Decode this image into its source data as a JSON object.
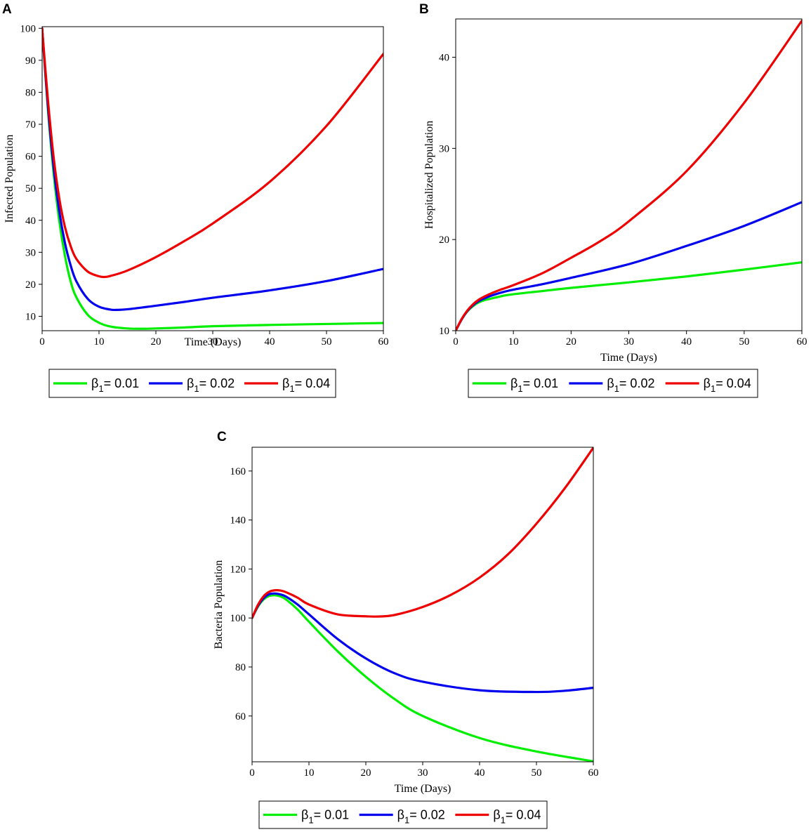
{
  "chart_data": [
    {
      "panel": "A",
      "type": "line",
      "xlabel": "Time (Days)",
      "ylabel": "Infected Population",
      "xlim": [
        0,
        60
      ],
      "ylim": [
        5.5,
        100.5
      ],
      "xticks": [
        0,
        10,
        20,
        30,
        40,
        50,
        60
      ],
      "yticks": [
        10,
        20,
        30,
        40,
        50,
        60,
        70,
        80,
        90,
        100
      ],
      "legend": {
        "position": "bottom-center",
        "entries": [
          "β1 = 0.01",
          "β1 = 0.02",
          "β1 = 0.04"
        ]
      },
      "series": [
        {
          "name": "β1 = 0.01",
          "symbol": "β",
          "sub": "1",
          "value_text": "= 0.01",
          "color": "#00ee00",
          "x": [
            0,
            1,
            2,
            3,
            4,
            5,
            6,
            8,
            10,
            12,
            15,
            18,
            20,
            25,
            30,
            40,
            50,
            60
          ],
          "y": [
            100,
            75,
            55,
            40,
            29,
            21,
            16,
            10.5,
            8,
            6.8,
            6.2,
            6.1,
            6.2,
            6.5,
            6.9,
            7.3,
            7.6,
            7.9
          ]
        },
        {
          "name": "β1 = 0.02",
          "symbol": "β",
          "sub": "1",
          "value_text": "= 0.02",
          "color": "#0000ee",
          "x": [
            0,
            1,
            2,
            3,
            4,
            5,
            6,
            8,
            10,
            12,
            13,
            15,
            20,
            25,
            30,
            40,
            50,
            60
          ],
          "y": [
            100,
            76,
            57,
            43,
            33,
            26,
            21,
            15.5,
            13,
            12.1,
            12,
            12.2,
            13.3,
            14.5,
            15.8,
            18.1,
            21,
            24.8
          ]
        },
        {
          "name": "β1 = 0.04",
          "symbol": "β",
          "sub": "1",
          "value_text": "= 0.04",
          "color": "#ee0000",
          "x": [
            0,
            1,
            2,
            3,
            4,
            5,
            6,
            8,
            10,
            11,
            12,
            15,
            20,
            25,
            30,
            40,
            50,
            60
          ],
          "y": [
            100,
            78,
            60,
            47,
            38,
            32,
            28,
            24,
            22.5,
            22.3,
            22.6,
            24.3,
            28.5,
            33.5,
            39,
            52,
            69.5,
            92
          ]
        }
      ]
    },
    {
      "panel": "B",
      "type": "line",
      "xlabel": "Time (Days)",
      "ylabel": "Hospitalized Population",
      "xlim": [
        0,
        60
      ],
      "ylim": [
        10,
        44.2
      ],
      "xticks": [
        0,
        10,
        20,
        30,
        40,
        50,
        60
      ],
      "yticks": [
        10,
        20,
        30,
        40
      ],
      "legend": {
        "position": "bottom-center",
        "entries": [
          "β1 = 0.01",
          "β1 = 0.02",
          "β1 = 0.04"
        ]
      },
      "series": [
        {
          "name": "β1 = 0.01",
          "symbol": "β",
          "sub": "1",
          "value_text": "= 0.01",
          "color": "#00ee00",
          "x": [
            0,
            1,
            2,
            3,
            4,
            5,
            6,
            8,
            10,
            15,
            20,
            30,
            40,
            50,
            60
          ],
          "y": [
            10,
            11.2,
            12.1,
            12.7,
            13.1,
            13.35,
            13.5,
            13.8,
            14,
            14.35,
            14.7,
            15.3,
            15.95,
            16.7,
            17.5
          ]
        },
        {
          "name": "β1 = 0.02",
          "symbol": "β",
          "sub": "1",
          "value_text": "= 0.02",
          "color": "#0000ee",
          "x": [
            0,
            1,
            2,
            3,
            4,
            5,
            6,
            8,
            10,
            15,
            20,
            30,
            40,
            50,
            60
          ],
          "y": [
            10,
            11.2,
            12.15,
            12.8,
            13.25,
            13.55,
            13.8,
            14.2,
            14.5,
            15.1,
            15.8,
            17.3,
            19.3,
            21.5,
            24.1
          ]
        },
        {
          "name": "β1 = 0.04",
          "symbol": "β",
          "sub": "1",
          "value_text": "= 0.04",
          "color": "#ee0000",
          "x": [
            0,
            1,
            2,
            3,
            4,
            5,
            6,
            8,
            10,
            15,
            20,
            25,
            30,
            40,
            50,
            60
          ],
          "y": [
            10,
            11.25,
            12.2,
            12.9,
            13.4,
            13.75,
            14.05,
            14.55,
            15,
            16.3,
            18,
            19.8,
            22,
            27.5,
            35,
            44
          ]
        }
      ]
    },
    {
      "panel": "C",
      "type": "line",
      "xlabel": "Time (Days)",
      "ylabel": "Bacteria Population",
      "xlim": [
        0,
        60
      ],
      "ylim": [
        41.3,
        169.7
      ],
      "xticks": [
        0,
        10,
        20,
        30,
        40,
        50,
        60
      ],
      "yticks": [
        60,
        80,
        100,
        120,
        140,
        160
      ],
      "legend": {
        "position": "bottom-center",
        "entries": [
          "β1 = 0.01",
          "β1 = 0.02",
          "β1 = 0.04"
        ]
      },
      "series": [
        {
          "name": "β1 = 0.01",
          "symbol": "β",
          "sub": "1",
          "value_text": "= 0.01",
          "color": "#00ee00",
          "x": [
            0,
            1,
            2,
            3,
            4,
            5,
            6,
            8,
            10,
            15,
            20,
            25,
            30,
            40,
            50,
            60
          ],
          "y": [
            100,
            104.5,
            107.5,
            109,
            109.3,
            108.8,
            107.5,
            103.5,
            98.5,
            86.5,
            76,
            67,
            60,
            51,
            45.5,
            41.5
          ]
        },
        {
          "name": "β1 = 0.02",
          "symbol": "β",
          "sub": "1",
          "value_text": "= 0.02",
          "color": "#0000ee",
          "x": [
            0,
            1,
            2,
            3,
            4,
            5,
            6,
            8,
            10,
            15,
            20,
            25,
            30,
            40,
            50,
            55,
            60
          ],
          "y": [
            100,
            104.8,
            108,
            109.7,
            110,
            109.6,
            108.7,
            105.5,
            101.5,
            91.5,
            83.5,
            77.5,
            74,
            70.5,
            69.8,
            70.3,
            71.5
          ]
        },
        {
          "name": "β1 = 0.04",
          "symbol": "β",
          "sub": "1",
          "value_text": "= 0.04",
          "color": "#ee0000",
          "x": [
            0,
            1,
            2,
            3,
            4,
            5,
            6,
            8,
            10,
            15,
            20,
            22,
            25,
            30,
            35,
            40,
            45,
            50,
            55,
            60
          ],
          "y": [
            100,
            105.2,
            108.8,
            110.7,
            111.3,
            111.2,
            110.5,
            108.3,
            105.5,
            101.5,
            100.7,
            100.6,
            101.2,
            104.5,
            109.5,
            116.5,
            126,
            138.5,
            153,
            169.5
          ]
        }
      ]
    }
  ]
}
